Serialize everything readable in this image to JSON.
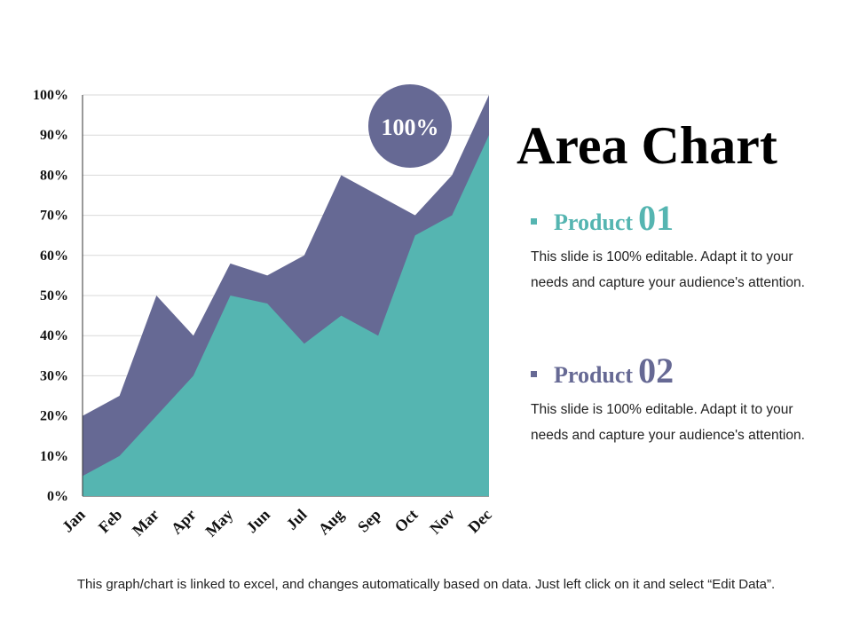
{
  "chart_data": {
    "type": "area",
    "categories": [
      "Jan",
      "Feb",
      "Mar",
      "Apr",
      "May",
      "Jun",
      "Jul",
      "Aug",
      "Sep",
      "Oct",
      "Nov",
      "Dec"
    ],
    "series": [
      {
        "name": "Product 02",
        "values": [
          20,
          25,
          50,
          40,
          58,
          55,
          60,
          80,
          75,
          70,
          80,
          100
        ],
        "color": "#666994"
      },
      {
        "name": "Product 01",
        "values": [
          5,
          10,
          20,
          30,
          50,
          48,
          38,
          45,
          40,
          65,
          70,
          90
        ],
        "color": "#55b5b1"
      }
    ],
    "ylim": [
      0,
      100
    ],
    "yticks": [
      "0%",
      "10%",
      "20%",
      "30%",
      "40%",
      "50%",
      "60%",
      "70%",
      "80%",
      "90%",
      "100%"
    ],
    "grid": true,
    "badge": "100%",
    "badge_color": "#666994"
  },
  "slide": {
    "title": "Area Chart",
    "products": [
      {
        "name": "Product",
        "number": "01",
        "description": "This slide is 100% editable. Adapt it to your needs and capture your audience's attention."
      },
      {
        "name": "Product",
        "number": "02",
        "description": "This slide is 100% editable. Adapt it to your needs and capture your audience's attention."
      }
    ],
    "footnote": "This graph/chart is linked to excel, and changes automatically based on data. Just left click on it and select “Edit Data”."
  }
}
